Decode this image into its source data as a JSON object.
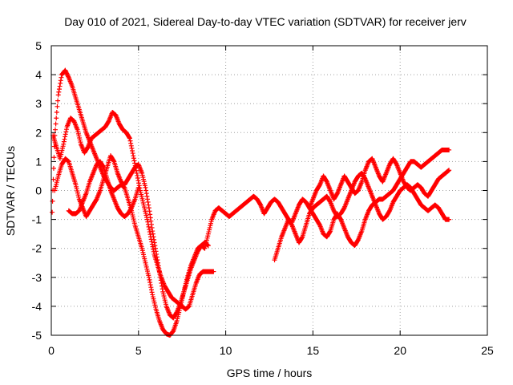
{
  "chart_data": {
    "type": "scatter",
    "title": "Day 010 of 2021, Sidereal Day-to-day VTEC variation (SDTVAR) for receiver jerv",
    "xlabel": "GPS time / hours",
    "ylabel": "SDTVAR / TECUs",
    "xlim": [
      0,
      25
    ],
    "ylim": [
      -5,
      5
    ],
    "xticks": [
      0,
      5,
      10,
      15,
      20,
      25
    ],
    "yticks": [
      -5,
      -4,
      -3,
      -2,
      -1,
      0,
      1,
      2,
      3,
      4,
      5
    ],
    "grid": true,
    "marker": "+",
    "color": "#ff0000",
    "series": [
      {
        "x": [
          0.05,
          0.2,
          0.4,
          0.6,
          0.8,
          1.0,
          1.2,
          1.4,
          1.6,
          1.8,
          2.0,
          2.2,
          2.4,
          2.6,
          2.8,
          3.0,
          3.2,
          3.4,
          3.6,
          3.8,
          4.0,
          4.2,
          4.4,
          4.6,
          4.8,
          5.0,
          5.2,
          5.4,
          5.6,
          5.8,
          6.0,
          6.2,
          6.4,
          6.6,
          6.8,
          7.0,
          7.2,
          7.4,
          7.6,
          7.8,
          8.0,
          8.2,
          8.4,
          8.6,
          8.8,
          9.0,
          9.2,
          9.4,
          9.6,
          9.8,
          10.0,
          10.2,
          10.4,
          10.6,
          10.8,
          11.0,
          11.2,
          11.4,
          11.6,
          11.8,
          12.0,
          12.2,
          12.4,
          12.6,
          12.8,
          13.0,
          13.2,
          13.4,
          13.6,
          13.8,
          14.0,
          14.2,
          14.4,
          14.6,
          14.8,
          15.0,
          15.2,
          15.4,
          15.6,
          15.8,
          16.0,
          16.2,
          16.4,
          16.6,
          16.8,
          17.0,
          17.2,
          17.4,
          17.6,
          17.8,
          18.0,
          18.2,
          18.4,
          18.6,
          18.8,
          19.0,
          19.2,
          19.4,
          19.6,
          19.8,
          20.0,
          20.2,
          20.4,
          20.6,
          20.8,
          21.0,
          21.2,
          21.4,
          21.6,
          21.8,
          22.0,
          22.2,
          22.4,
          22.6,
          22.8
        ],
        "y": [
          -0.75,
          1.9,
          3.3,
          4.0,
          4.15,
          3.9,
          3.6,
          3.2,
          2.8,
          2.4,
          2.0,
          1.7,
          1.4,
          1.1,
          0.8,
          0.5,
          0.3,
          0.1,
          0.0,
          0.1,
          0.2,
          0.1,
          -0.3,
          -0.7,
          -1.2,
          -1.6,
          -2.0,
          -2.5,
          -3.0,
          -3.6,
          -4.1,
          -4.5,
          -4.8,
          -4.95,
          -5.0,
          -4.85,
          -4.5,
          -4.0,
          -3.5,
          -3.0,
          -2.6,
          -2.3,
          -2.0,
          -1.9,
          -2.0,
          -1.5,
          -1.0,
          -0.7,
          -0.6,
          -0.7,
          -0.8,
          -0.9,
          -0.8,
          -0.7,
          -0.6,
          -0.5,
          -0.4,
          -0.3,
          -0.2,
          -0.3,
          -0.5,
          -0.8,
          -0.6,
          -0.4,
          -0.3,
          -0.4,
          -0.6,
          -0.8,
          -1.0,
          -1.1,
          -0.8,
          -0.5,
          -0.3,
          -0.4,
          -0.6,
          -0.8,
          -1.0,
          -1.2,
          -1.5,
          -1.6,
          -1.4,
          -1.0,
          -0.8,
          -1.0,
          -1.3,
          -1.6,
          -1.8,
          -1.9,
          -1.7,
          -1.4,
          -1.0,
          -0.7,
          -0.5,
          -0.4,
          -0.3,
          -0.3,
          -0.2,
          -0.1,
          0.0,
          0.2,
          0.4,
          0.6,
          0.8,
          1.0,
          1.0,
          0.9,
          0.8,
          0.9,
          1.0,
          1.1,
          1.2,
          1.3,
          1.4,
          1.4,
          1.4
        ]
      },
      {
        "x": [
          0.1,
          0.3,
          0.5,
          0.7,
          0.9,
          1.1,
          1.3,
          1.5,
          1.7,
          1.9,
          2.1,
          2.3,
          2.5,
          2.7,
          2.9,
          3.1,
          3.3,
          3.5,
          3.7,
          3.9,
          4.1,
          4.3,
          4.5,
          4.7,
          4.9,
          5.1,
          5.3,
          5.5,
          5.7,
          5.9,
          6.1,
          6.3,
          6.5,
          6.7,
          6.9,
          7.1,
          7.3,
          7.5,
          7.7,
          7.9,
          8.1,
          8.3,
          8.5,
          8.7,
          8.9,
          9.1,
          9.3
        ],
        "y": [
          1.9,
          1.5,
          1.1,
          1.6,
          2.2,
          2.5,
          2.4,
          2.1,
          1.6,
          1.3,
          1.5,
          1.8,
          1.9,
          2.0,
          2.1,
          2.2,
          2.4,
          2.7,
          2.6,
          2.3,
          2.1,
          2.0,
          1.8,
          1.2,
          0.6,
          0.0,
          -0.5,
          -1.0,
          -1.6,
          -2.2,
          -2.6,
          -3.0,
          -3.3,
          -3.5,
          -3.7,
          -3.8,
          -3.9,
          -4.0,
          -4.1,
          -4.0,
          -3.6,
          -3.2,
          -2.9,
          -2.8,
          -2.8,
          -2.8,
          -2.8
        ]
      },
      {
        "x": [
          0.2,
          0.4,
          0.6,
          0.8,
          1.0,
          1.2,
          1.4,
          1.6,
          1.8,
          2.0,
          2.2,
          2.4,
          2.6,
          2.8,
          3.0,
          3.2,
          3.4,
          3.6,
          3.8,
          4.0,
          4.2,
          4.4,
          4.6,
          4.8,
          5.0,
          5.2,
          5.4,
          5.6,
          5.8,
          6.0,
          6.2,
          6.4,
          6.6,
          6.8,
          7.0,
          7.2,
          7.4,
          7.6,
          7.8,
          8.0,
          8.2,
          8.4,
          8.6,
          8.8,
          9.0
        ],
        "y": [
          0.0,
          0.5,
          0.9,
          1.1,
          1.0,
          0.6,
          0.2,
          -0.3,
          -0.6,
          -0.9,
          -0.7,
          -0.5,
          -0.3,
          0.0,
          0.4,
          0.8,
          1.2,
          1.0,
          0.6,
          0.3,
          0.2,
          0.4,
          0.6,
          0.8,
          0.9,
          0.6,
          0.1,
          -0.6,
          -1.4,
          -2.1,
          -2.8,
          -3.5,
          -4.0,
          -4.3,
          -4.4,
          -4.2,
          -3.9,
          -3.5,
          -3.1,
          -2.7,
          -2.4,
          -2.1,
          -1.9,
          -1.8,
          -1.9
        ]
      },
      {
        "x": [
          1.0,
          1.2,
          1.4,
          1.6,
          1.8,
          2.0,
          2.2,
          2.4,
          2.6,
          2.8,
          3.0,
          3.2,
          3.4,
          3.6,
          3.8,
          4.0,
          4.2,
          4.4,
          4.6,
          4.8,
          5.0
        ],
        "y": [
          -0.7,
          -0.8,
          -0.8,
          -0.7,
          -0.4,
          -0.1,
          0.3,
          0.6,
          0.9,
          1.0,
          0.8,
          0.4,
          0.0,
          -0.3,
          -0.6,
          -0.8,
          -0.9,
          -0.8,
          -0.6,
          -0.3,
          0.1
        ]
      },
      {
        "x": [
          12.8,
          13.0,
          13.2,
          13.4,
          13.6,
          13.8,
          14.0,
          14.2,
          14.4,
          14.6,
          14.8,
          15.0,
          15.2,
          15.4,
          15.6,
          15.8,
          16.0,
          16.2,
          16.4,
          16.6,
          16.8,
          17.0,
          17.2,
          17.4,
          17.6,
          17.8,
          18.0,
          18.2,
          18.4,
          18.6,
          18.8,
          19.0,
          19.2,
          19.4,
          19.6,
          19.8,
          20.0,
          20.2,
          20.4,
          20.6,
          20.8,
          21.0,
          21.2,
          21.4,
          21.6,
          21.8,
          22.0,
          22.2,
          22.4,
          22.6,
          22.8
        ],
        "y": [
          -2.4,
          -2.0,
          -1.6,
          -1.3,
          -1.0,
          -1.2,
          -1.5,
          -1.8,
          -1.6,
          -1.2,
          -0.8,
          -0.6,
          -0.5,
          -0.4,
          -0.3,
          -0.2,
          -0.4,
          -0.7,
          -0.9,
          -0.8,
          -0.6,
          -0.3,
          0.0,
          0.3,
          0.5,
          0.6,
          0.4,
          0.1,
          -0.2,
          -0.5,
          -0.8,
          -1.0,
          -0.9,
          -0.7,
          -0.4,
          -0.2,
          0.0,
          0.1,
          0.2,
          0.1,
          -0.1,
          -0.3,
          -0.5,
          -0.6,
          -0.7,
          -0.6,
          -0.5,
          -0.6,
          -0.8,
          -1.0,
          -1.0
        ]
      },
      {
        "x": [
          14.8,
          15.0,
          15.2,
          15.4,
          15.6,
          15.8,
          16.0,
          16.2,
          16.4,
          16.6,
          16.8,
          17.0,
          17.2,
          17.4,
          17.6,
          17.8,
          18.0,
          18.2,
          18.4,
          18.6,
          18.8,
          19.0,
          19.2,
          19.4,
          19.6,
          19.8,
          20.0,
          20.2,
          20.4,
          20.6,
          20.8,
          21.0,
          21.2,
          21.4,
          21.6,
          21.8,
          22.0,
          22.2,
          22.4,
          22.6,
          22.8
        ],
        "y": [
          -0.6,
          -0.3,
          0.0,
          0.2,
          0.5,
          0.3,
          0.0,
          -0.3,
          -0.1,
          0.2,
          0.5,
          0.3,
          0.1,
          -0.1,
          0.0,
          0.3,
          0.7,
          1.0,
          1.1,
          0.8,
          0.5,
          0.3,
          0.6,
          0.9,
          1.1,
          0.9,
          0.6,
          0.3,
          0.1,
          0.0,
          0.1,
          0.2,
          0.1,
          -0.1,
          -0.2,
          0.0,
          0.2,
          0.4,
          0.5,
          0.6,
          0.7
        ]
      }
    ]
  }
}
